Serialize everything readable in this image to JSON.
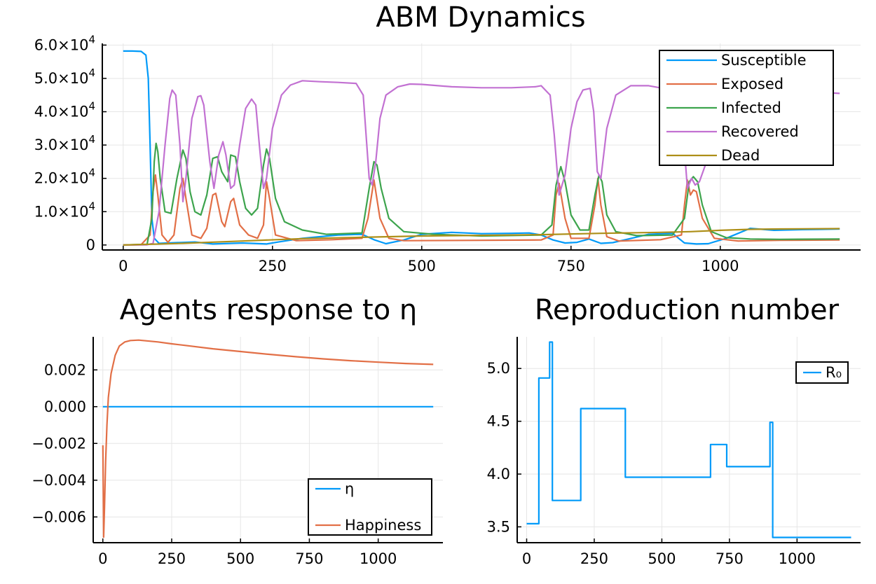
{
  "chart_data": [
    {
      "type": "line",
      "title": "ABM Dynamics",
      "xlabel": "",
      "ylabel": "",
      "xlim": [
        -35,
        1235
      ],
      "ylim": [
        -1500,
        60500
      ],
      "x_ticks": [
        0,
        250,
        500,
        750,
        1000
      ],
      "x_tick_labels": [
        "0",
        "250",
        "500",
        "750",
        "1000"
      ],
      "y_ticks": [
        0,
        10000,
        20000,
        30000,
        40000,
        50000,
        60000
      ],
      "y_tick_labels": [
        {
          "mantissa": "0",
          "exp": ""
        },
        {
          "mantissa": "1.0×10",
          "exp": "4"
        },
        {
          "mantissa": "2.0×10",
          "exp": "4"
        },
        {
          "mantissa": "3.0×10",
          "exp": "4"
        },
        {
          "mantissa": "4.0×10",
          "exp": "4"
        },
        {
          "mantissa": "5.0×10",
          "exp": "4"
        },
        {
          "mantissa": "6.0×10",
          "exp": "4"
        }
      ],
      "grid": true,
      "legend_position": "top-right",
      "series": [
        {
          "name": "Susceptible",
          "color": "#009af9",
          "x": [
            0,
            15,
            30,
            38,
            42,
            45,
            48,
            52,
            60,
            90,
            120,
            150,
            200,
            240,
            260,
            300,
            360,
            400,
            420,
            440,
            470,
            500,
            550,
            600,
            650,
            680,
            700,
            720,
            740,
            760,
            780,
            800,
            820,
            880,
            920,
            940,
            960,
            980,
            1010,
            1050,
            1090,
            1130,
            1170,
            1200
          ],
          "y": [
            58200,
            58200,
            58100,
            57000,
            50000,
            30000,
            8000,
            2000,
            500,
            700,
            900,
            300,
            600,
            300,
            900,
            2000,
            3000,
            3200,
            1600,
            400,
            1500,
            3200,
            3800,
            3400,
            3500,
            3600,
            3000,
            1500,
            600,
            800,
            1800,
            500,
            700,
            3200,
            3500,
            600,
            300,
            400,
            2000,
            5000,
            4400,
            4600,
            4700,
            4800
          ]
        },
        {
          "name": "Exposed",
          "color": "#e26f46",
          "x": [
            0,
            30,
            45,
            50,
            54,
            58,
            65,
            75,
            85,
            95,
            100,
            105,
            115,
            130,
            140,
            150,
            155,
            165,
            170,
            180,
            185,
            195,
            210,
            225,
            235,
            240,
            245,
            255,
            290,
            350,
            400,
            410,
            420,
            430,
            445,
            470,
            600,
            700,
            720,
            725,
            730,
            740,
            750,
            780,
            790,
            795,
            800,
            810,
            830,
            900,
            935,
            940,
            945,
            950,
            955,
            960,
            970,
            990,
            1030,
            1100,
            1200
          ],
          "y": [
            0,
            100,
            3000,
            16000,
            21000,
            15000,
            3000,
            800,
            3000,
            17000,
            20000,
            14000,
            3000,
            2000,
            5000,
            15000,
            15500,
            7000,
            5500,
            13000,
            14000,
            6000,
            3000,
            2000,
            6000,
            19000,
            14000,
            3000,
            1300,
            1600,
            2000,
            8000,
            19500,
            8000,
            2000,
            1300,
            1400,
            1500,
            3000,
            15000,
            18500,
            8000,
            2000,
            2000,
            12000,
            20000,
            12000,
            2500,
            1200,
            1600,
            3000,
            12000,
            19500,
            15000,
            16500,
            16000,
            8000,
            2000,
            1200,
            1400,
            1500
          ]
        },
        {
          "name": "Infected",
          "color": "#3da44d",
          "x": [
            0,
            40,
            48,
            52,
            55,
            58,
            62,
            70,
            80,
            90,
            100,
            105,
            112,
            120,
            130,
            140,
            150,
            158,
            165,
            175,
            180,
            188,
            195,
            205,
            215,
            225,
            235,
            240,
            245,
            255,
            270,
            300,
            340,
            400,
            412,
            420,
            425,
            432,
            445,
            470,
            520,
            600,
            700,
            718,
            725,
            733,
            740,
            750,
            765,
            780,
            790,
            797,
            802,
            810,
            825,
            860,
            920,
            940,
            948,
            955,
            962,
            970,
            985,
            1010,
            1050,
            1100,
            1200
          ],
          "y": [
            0,
            200,
            8000,
            25000,
            30500,
            28000,
            20000,
            10000,
            9500,
            20000,
            28500,
            26000,
            16000,
            10000,
            9000,
            15000,
            26000,
            26500,
            22000,
            19000,
            27000,
            26500,
            19000,
            11000,
            9000,
            11000,
            24000,
            28800,
            26000,
            14000,
            7000,
            4500,
            3200,
            3600,
            17000,
            25000,
            24000,
            17000,
            8000,
            4000,
            3200,
            2700,
            3000,
            6000,
            18000,
            23500,
            19000,
            9000,
            4500,
            4500,
            15000,
            21000,
            19000,
            9000,
            4000,
            2800,
            3000,
            8000,
            19000,
            20500,
            19000,
            12000,
            4000,
            2200,
            1800,
            1700,
            1800
          ]
        },
        {
          "name": "Recovered",
          "color": "#c271d2",
          "x": [
            0,
            40,
            50,
            60,
            70,
            78,
            82,
            88,
            95,
            100,
            105,
            115,
            125,
            130,
            135,
            145,
            152,
            160,
            167,
            172,
            180,
            186,
            195,
            205,
            215,
            222,
            228,
            235,
            240,
            250,
            265,
            280,
            300,
            330,
            360,
            390,
            402,
            408,
            412,
            417,
            423,
            430,
            440,
            460,
            480,
            500,
            550,
            600,
            650,
            690,
            700,
            715,
            722,
            730,
            740,
            750,
            760,
            770,
            782,
            788,
            794,
            800,
            810,
            825,
            850,
            880,
            920,
            930,
            938,
            945,
            952,
            958,
            965,
            975,
            990,
            1020,
            1050,
            1100,
            1150,
            1200
          ],
          "y": [
            0,
            50,
            500,
            10000,
            30000,
            44000,
            46500,
            45000,
            30000,
            13000,
            20000,
            38000,
            44500,
            44800,
            42000,
            25000,
            17000,
            27000,
            31000,
            27000,
            17000,
            18000,
            30000,
            41000,
            43800,
            42000,
            30000,
            17000,
            20000,
            35000,
            45000,
            48000,
            49300,
            49000,
            48800,
            48500,
            45000,
            30000,
            20000,
            18000,
            25000,
            38000,
            45000,
            47500,
            48300,
            48200,
            47500,
            47200,
            47200,
            47500,
            47800,
            45000,
            33000,
            15000,
            21000,
            35000,
            43000,
            46500,
            47000,
            40000,
            22000,
            20000,
            35000,
            45000,
            47800,
            47800,
            46500,
            44000,
            33000,
            17000,
            20000,
            18000,
            19000,
            24000,
            35000,
            44000,
            46500,
            46200,
            46000,
            45500
          ]
        },
        {
          "name": "Dead",
          "color": "#ad8f18",
          "x": [
            0,
            100,
            200,
            300,
            400,
            500,
            600,
            700,
            800,
            900,
            950,
            1000,
            1050,
            1100,
            1200
          ],
          "y": [
            0,
            500,
            1200,
            1900,
            2300,
            2700,
            2900,
            3100,
            3500,
            3800,
            4000,
            4400,
            4700,
            4800,
            4900
          ]
        }
      ]
    },
    {
      "type": "line",
      "title": "Agents response to η",
      "xlabel": "",
      "ylabel": "",
      "xlim": [
        -35,
        1235
      ],
      "ylim": [
        -0.0074,
        0.0038
      ],
      "x_ticks": [
        0,
        250,
        500,
        750,
        1000
      ],
      "x_tick_labels": [
        "0",
        "250",
        "500",
        "750",
        "1000"
      ],
      "y_ticks": [
        -0.006,
        -0.004,
        -0.002,
        0.0,
        0.002
      ],
      "y_tick_labels": [
        "−0.006",
        "−0.004",
        "−0.002",
        "0.000",
        "0.002"
      ],
      "grid": true,
      "legend_position": "bottom-right",
      "series": [
        {
          "name": "η",
          "color": "#009af9",
          "x": [
            0,
            1200
          ],
          "y": [
            0.0,
            0.0
          ]
        },
        {
          "name": "Happiness",
          "color": "#e26f46",
          "x": [
            0,
            1,
            3,
            6,
            10,
            15,
            20,
            30,
            45,
            60,
            80,
            100,
            130,
            160,
            200,
            250,
            300,
            400,
            500,
            600,
            700,
            800,
            900,
            1000,
            1100,
            1200
          ],
          "y": [
            -0.0021,
            -0.0035,
            -0.0071,
            -0.0055,
            -0.003,
            -0.001,
            0.0005,
            0.0018,
            0.0028,
            0.0033,
            0.00352,
            0.0036,
            0.00362,
            0.00358,
            0.00352,
            0.00342,
            0.00333,
            0.00315,
            0.003,
            0.00285,
            0.00272,
            0.0026,
            0.0025,
            0.00242,
            0.00235,
            0.0023
          ]
        }
      ]
    },
    {
      "type": "line",
      "title": "Reproduction number",
      "xlabel": "",
      "ylabel": "",
      "xlim": [
        -35,
        1235
      ],
      "ylim": [
        3.35,
        5.3
      ],
      "x_ticks": [
        0,
        250,
        500,
        750,
        1000
      ],
      "x_tick_labels": [
        "0",
        "250",
        "500",
        "750",
        "1000"
      ],
      "y_ticks": [
        3.5,
        4.0,
        4.5,
        5.0
      ],
      "y_tick_labels": [
        "3.5",
        "4.0",
        "4.5",
        "5.0"
      ],
      "grid": true,
      "legend_position": "top-right",
      "series": [
        {
          "name": "R₀",
          "color": "#009af9",
          "step": true,
          "x": [
            0,
            45,
            45,
            85,
            85,
            95,
            95,
            200,
            200,
            365,
            365,
            680,
            680,
            740,
            740,
            900,
            900,
            910,
            910,
            1200
          ],
          "y": [
            3.53,
            3.53,
            4.91,
            4.91,
            5.25,
            5.25,
            3.75,
            3.75,
            4.62,
            4.62,
            3.97,
            3.97,
            4.28,
            4.28,
            4.07,
            4.07,
            4.49,
            4.49,
            3.4,
            3.4
          ]
        }
      ]
    }
  ]
}
